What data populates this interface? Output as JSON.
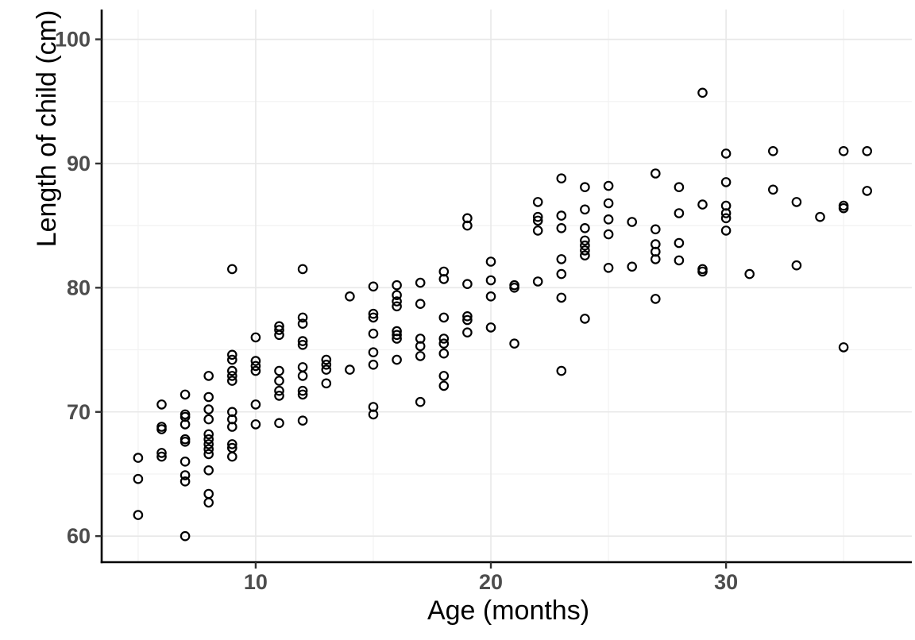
{
  "chart_data": {
    "type": "scatter",
    "title": "",
    "xlabel": "Age (months)",
    "ylabel": "Length of child (cm)",
    "x_ticks": [
      10,
      20,
      30
    ],
    "y_ticks": [
      60,
      70,
      80,
      90,
      100
    ],
    "x_minor_ticks": [
      5,
      15,
      25,
      35
    ],
    "y_minor_ticks": [
      65,
      75,
      85,
      95
    ],
    "xlim": [
      3.45,
      37.9
    ],
    "ylim": [
      57.9,
      102.4
    ],
    "grid": "major-and-minor",
    "legend_position": "none",
    "point_style": "open-circle",
    "colors": {
      "point_stroke": "#000000",
      "axis_line": "#000000",
      "tick_mark": "#333333",
      "tick_label": "#4d4d4d",
      "grid_major": "#e8e8e8",
      "grid_minor": "#f2f2f2",
      "background": "#ffffff"
    },
    "points": [
      [
        5,
        66.3
      ],
      [
        5,
        64.6
      ],
      [
        5,
        61.7
      ],
      [
        6,
        70.6
      ],
      [
        6,
        68.8
      ],
      [
        6,
        68.6
      ],
      [
        6,
        66.7
      ],
      [
        6,
        66.4
      ],
      [
        7,
        71.4
      ],
      [
        7,
        69.8
      ],
      [
        7,
        69.6
      ],
      [
        7,
        69.0
      ],
      [
        7,
        67.8
      ],
      [
        7,
        67.6
      ],
      [
        7,
        66.0
      ],
      [
        7,
        64.9
      ],
      [
        7,
        64.4
      ],
      [
        7,
        60.0
      ],
      [
        8,
        72.9
      ],
      [
        8,
        71.2
      ],
      [
        8,
        70.2
      ],
      [
        8,
        69.4
      ],
      [
        8,
        68.2
      ],
      [
        8,
        67.8
      ],
      [
        8,
        67.4
      ],
      [
        8,
        67.0
      ],
      [
        8,
        66.6
      ],
      [
        8,
        65.3
      ],
      [
        8,
        63.4
      ],
      [
        8,
        62.7
      ],
      [
        9,
        81.5
      ],
      [
        9,
        74.6
      ],
      [
        9,
        74.2
      ],
      [
        9,
        73.3
      ],
      [
        9,
        72.9
      ],
      [
        9,
        72.5
      ],
      [
        9,
        70.0
      ],
      [
        9,
        69.4
      ],
      [
        9,
        68.8
      ],
      [
        9,
        67.4
      ],
      [
        9,
        67.1
      ],
      [
        9,
        66.4
      ],
      [
        10,
        76.0
      ],
      [
        10,
        74.1
      ],
      [
        10,
        73.7
      ],
      [
        10,
        73.3
      ],
      [
        10,
        70.6
      ],
      [
        10,
        69.0
      ],
      [
        11,
        76.9
      ],
      [
        11,
        76.6
      ],
      [
        11,
        76.2
      ],
      [
        11,
        73.3
      ],
      [
        11,
        72.5
      ],
      [
        11,
        71.7
      ],
      [
        11,
        71.3
      ],
      [
        11,
        69.1
      ],
      [
        12,
        81.5
      ],
      [
        12,
        77.6
      ],
      [
        12,
        77.1
      ],
      [
        12,
        75.7
      ],
      [
        12,
        75.4
      ],
      [
        12,
        73.6
      ],
      [
        12,
        72.9
      ],
      [
        12,
        71.7
      ],
      [
        12,
        71.4
      ],
      [
        12,
        69.3
      ],
      [
        13,
        74.2
      ],
      [
        13,
        73.8
      ],
      [
        13,
        73.4
      ],
      [
        13,
        72.3
      ],
      [
        14,
        79.3
      ],
      [
        14,
        73.4
      ],
      [
        15,
        80.1
      ],
      [
        15,
        77.9
      ],
      [
        15,
        77.6
      ],
      [
        15,
        76.3
      ],
      [
        15,
        74.8
      ],
      [
        15,
        73.8
      ],
      [
        15,
        70.4
      ],
      [
        15,
        69.8
      ],
      [
        16,
        80.2
      ],
      [
        16,
        79.4
      ],
      [
        16,
        78.9
      ],
      [
        16,
        78.5
      ],
      [
        16,
        76.5
      ],
      [
        16,
        76.2
      ],
      [
        16,
        75.9
      ],
      [
        16,
        74.2
      ],
      [
        17,
        80.4
      ],
      [
        17,
        78.7
      ],
      [
        17,
        75.9
      ],
      [
        17,
        75.3
      ],
      [
        17,
        74.5
      ],
      [
        17,
        70.8
      ],
      [
        18,
        81.3
      ],
      [
        18,
        80.7
      ],
      [
        18,
        77.6
      ],
      [
        18,
        75.9
      ],
      [
        18,
        75.5
      ],
      [
        18,
        74.7
      ],
      [
        18,
        72.9
      ],
      [
        18,
        72.1
      ],
      [
        19,
        85.6
      ],
      [
        19,
        85.0
      ],
      [
        19,
        80.3
      ],
      [
        19,
        77.7
      ],
      [
        19,
        77.4
      ],
      [
        19,
        76.4
      ],
      [
        20,
        82.1
      ],
      [
        20,
        80.6
      ],
      [
        20,
        79.3
      ],
      [
        20,
        76.8
      ],
      [
        21,
        80.2
      ],
      [
        21,
        80.0
      ],
      [
        21,
        75.5
      ],
      [
        22,
        86.9
      ],
      [
        22,
        85.7
      ],
      [
        22,
        85.4
      ],
      [
        22,
        84.6
      ],
      [
        22,
        80.5
      ],
      [
        23,
        88.8
      ],
      [
        23,
        85.8
      ],
      [
        23,
        84.8
      ],
      [
        23,
        82.3
      ],
      [
        23,
        81.1
      ],
      [
        23,
        79.2
      ],
      [
        23,
        73.3
      ],
      [
        24,
        88.1
      ],
      [
        24,
        86.3
      ],
      [
        24,
        84.8
      ],
      [
        24,
        83.8
      ],
      [
        24,
        83.4
      ],
      [
        24,
        83.0
      ],
      [
        24,
        82.6
      ],
      [
        24,
        77.5
      ],
      [
        25,
        88.2
      ],
      [
        25,
        86.8
      ],
      [
        25,
        85.5
      ],
      [
        25,
        84.3
      ],
      [
        25,
        81.6
      ],
      [
        26,
        85.3
      ],
      [
        26,
        81.7
      ],
      [
        27,
        89.2
      ],
      [
        27,
        84.7
      ],
      [
        27,
        83.5
      ],
      [
        27,
        82.9
      ],
      [
        27,
        82.3
      ],
      [
        27,
        79.1
      ],
      [
        28,
        88.1
      ],
      [
        28,
        86.0
      ],
      [
        28,
        83.6
      ],
      [
        28,
        82.2
      ],
      [
        29,
        95.7
      ],
      [
        29,
        86.7
      ],
      [
        29,
        81.5
      ],
      [
        29,
        81.3
      ],
      [
        30,
        90.8
      ],
      [
        30,
        88.5
      ],
      [
        30,
        86.6
      ],
      [
        30,
        86.0
      ],
      [
        30,
        85.6
      ],
      [
        30,
        84.6
      ],
      [
        31,
        81.1
      ],
      [
        32,
        91.0
      ],
      [
        32,
        87.9
      ],
      [
        33,
        86.9
      ],
      [
        33,
        81.8
      ],
      [
        34,
        85.7
      ],
      [
        35,
        91.0
      ],
      [
        35,
        86.6
      ],
      [
        35,
        86.4
      ],
      [
        35,
        75.2
      ],
      [
        36,
        91.0
      ],
      [
        36,
        87.8
      ]
    ]
  }
}
